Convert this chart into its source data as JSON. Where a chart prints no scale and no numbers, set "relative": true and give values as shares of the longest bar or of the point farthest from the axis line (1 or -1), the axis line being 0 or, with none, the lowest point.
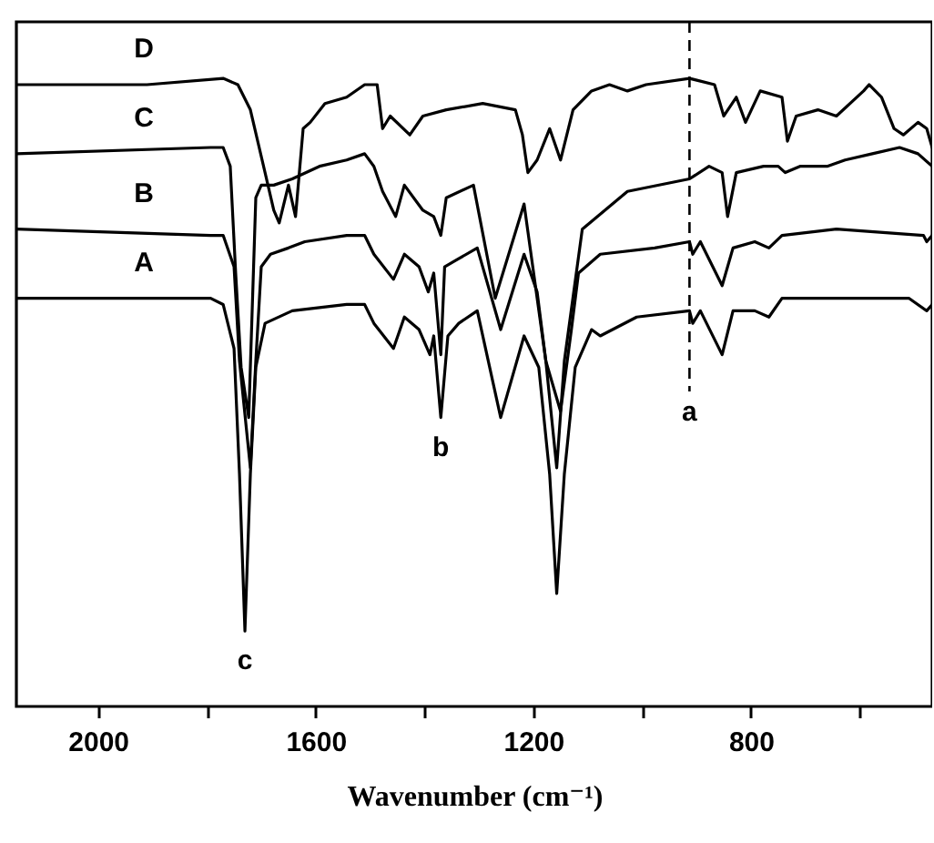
{
  "chart_data": {
    "type": "line",
    "relative": true,
    "xlabel": "Wavenumber (cm⁻¹)",
    "xlim": [
      2150,
      467
    ],
    "xticks": [
      2000,
      {
        "value": 1800,
        "label": null
      },
      1600,
      {
        "value": 1400,
        "label": null
      },
      1200,
      {
        "value": 1000,
        "label": null
      },
      800,
      {
        "value": 600,
        "label": null
      }
    ],
    "grid": false,
    "series": [
      {
        "name": "D",
        "color": "#000000",
        "x": [
          2150,
          1910,
          1770,
          1743,
          1720,
          1693,
          1677,
          1667,
          1650,
          1637,
          1623,
          1610,
          1583,
          1543,
          1510,
          1487,
          1477,
          1463,
          1427,
          1403,
          1360,
          1293,
          1233,
          1220,
          1210,
          1193,
          1170,
          1150,
          1127,
          1093,
          1060,
          1027,
          993,
          913,
          867,
          850,
          827,
          810,
          783,
          743,
          733,
          717,
          677,
          643,
          593,
          583,
          560,
          537,
          520,
          493,
          477,
          467
        ],
        "values": [
          0.99,
          0.99,
          1.0,
          0.99,
          0.95,
          0.85,
          0.79,
          0.77,
          0.83,
          0.78,
          0.92,
          0.93,
          0.96,
          0.97,
          0.99,
          0.99,
          0.92,
          0.94,
          0.91,
          0.94,
          0.95,
          0.96,
          0.95,
          0.91,
          0.85,
          0.87,
          0.92,
          0.87,
          0.95,
          0.98,
          0.99,
          0.98,
          0.99,
          1.0,
          0.99,
          0.94,
          0.97,
          0.93,
          0.98,
          0.97,
          0.9,
          0.94,
          0.95,
          0.94,
          0.98,
          0.99,
          0.97,
          0.92,
          0.91,
          0.93,
          0.92,
          0.89
        ]
      },
      {
        "name": "C",
        "color": "#000000",
        "x": [
          2150,
          1793,
          1770,
          1757,
          1747,
          1737,
          1723,
          1710,
          1700,
          1677,
          1643,
          1593,
          1543,
          1510,
          1493,
          1477,
          1453,
          1437,
          1403,
          1383,
          1370,
          1360,
          1310,
          1270,
          1217,
          1177,
          1157,
          1143,
          1110,
          1027,
          913,
          877,
          853,
          843,
          827,
          777,
          750,
          737,
          710,
          660,
          627,
          577,
          527,
          493,
          467
        ],
        "values": [
          0.88,
          0.89,
          0.89,
          0.86,
          0.69,
          0.54,
          0.46,
          0.81,
          0.83,
          0.83,
          0.84,
          0.86,
          0.87,
          0.88,
          0.86,
          0.82,
          0.78,
          0.83,
          0.79,
          0.78,
          0.75,
          0.81,
          0.83,
          0.65,
          0.8,
          0.55,
          0.38,
          0.55,
          0.76,
          0.82,
          0.84,
          0.86,
          0.85,
          0.78,
          0.85,
          0.86,
          0.86,
          0.85,
          0.86,
          0.86,
          0.87,
          0.88,
          0.89,
          0.88,
          0.86
        ]
      },
      {
        "name": "B",
        "color": "#000000",
        "x": [
          2150,
          1793,
          1770,
          1750,
          1740,
          1720,
          1710,
          1700,
          1683,
          1650,
          1620,
          1543,
          1510,
          1493,
          1457,
          1437,
          1410,
          1393,
          1383,
          1370,
          1363,
          1343,
          1303,
          1260,
          1217,
          1193,
          1177,
          1150,
          1130,
          1117,
          1077,
          977,
          913,
          907,
          893,
          853,
          833,
          793,
          767,
          743,
          643,
          483,
          477,
          467
        ],
        "values": [
          0.76,
          0.75,
          0.75,
          0.7,
          0.55,
          0.38,
          0.55,
          0.7,
          0.72,
          0.73,
          0.74,
          0.75,
          0.75,
          0.72,
          0.68,
          0.72,
          0.7,
          0.66,
          0.69,
          0.56,
          0.7,
          0.71,
          0.73,
          0.6,
          0.72,
          0.66,
          0.55,
          0.47,
          0.6,
          0.69,
          0.72,
          0.73,
          0.74,
          0.72,
          0.74,
          0.67,
          0.73,
          0.74,
          0.73,
          0.75,
          0.76,
          0.75,
          0.74,
          0.75
        ]
      },
      {
        "name": "A",
        "color": "#000000",
        "x": [
          2150,
          1793,
          1770,
          1750,
          1740,
          1730,
          1720,
          1710,
          1693,
          1643,
          1543,
          1510,
          1493,
          1457,
          1437,
          1410,
          1390,
          1383,
          1370,
          1357,
          1337,
          1303,
          1260,
          1217,
          1190,
          1170,
          1157,
          1143,
          1123,
          1093,
          1077,
          1010,
          913,
          907,
          893,
          853,
          833,
          793,
          767,
          743,
          643,
          510,
          477,
          467
        ],
        "values": [
          0.65,
          0.65,
          0.64,
          0.57,
          0.37,
          0.12,
          0.37,
          0.54,
          0.61,
          0.63,
          0.64,
          0.64,
          0.61,
          0.57,
          0.62,
          0.6,
          0.56,
          0.59,
          0.46,
          0.59,
          0.61,
          0.63,
          0.46,
          0.59,
          0.54,
          0.37,
          0.18,
          0.37,
          0.54,
          0.6,
          0.59,
          0.62,
          0.63,
          0.61,
          0.63,
          0.56,
          0.63,
          0.63,
          0.62,
          0.65,
          0.65,
          0.65,
          0.63,
          0.64
        ]
      }
    ],
    "ref_lines": [
      {
        "axis": "x",
        "value": 913,
        "line_style": "dashed",
        "label": "a"
      }
    ],
    "annotations": [
      {
        "text": "b",
        "x": 1370,
        "y": 0.46
      },
      {
        "text": "c",
        "x": 1730,
        "y": 0.12
      }
    ]
  }
}
